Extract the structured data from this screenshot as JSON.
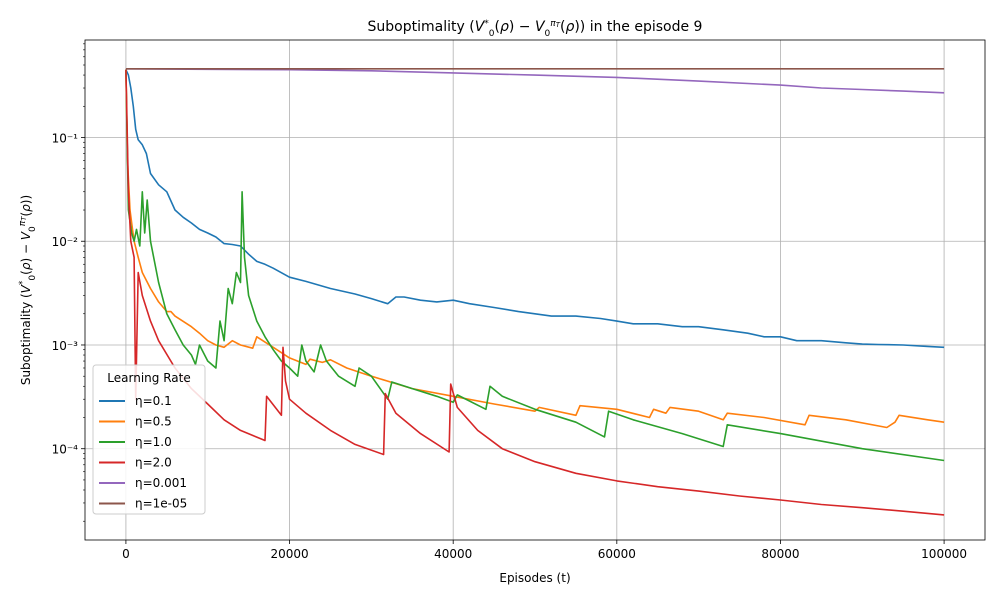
{
  "chart_data": {
    "type": "line",
    "title": "Suboptimality (V₀*(ρ) − V₀^πₜ(ρ)) in the episode 9",
    "xlabel": "Episodes (t)",
    "ylabel": "Suboptimality (V₀*(ρ) − V₀^πₜ(ρ))",
    "xlim": [
      -5000,
      105000
    ],
    "ylim_log10": [
      -4.88,
      -0.06
    ],
    "yscale": "log",
    "grid": true,
    "x_ticks": [
      0,
      20000,
      40000,
      60000,
      80000,
      100000
    ],
    "x_tick_labels": [
      "0",
      "20000",
      "40000",
      "60000",
      "80000",
      "100000"
    ],
    "y_ticks": [
      0.0001,
      0.001,
      0.01,
      0.1
    ],
    "y_tick_labels": [
      "10⁻⁴",
      "10⁻³",
      "10⁻²",
      "10⁻¹"
    ],
    "legend": {
      "title": "Learning Rate",
      "position": "lower-left"
    },
    "series": [
      {
        "name": "η=0.1",
        "color": "#1f77b4",
        "x": [
          0,
          300,
          600,
          900,
          1200,
          1500,
          2000,
          2500,
          3000,
          4000,
          5000,
          6000,
          7000,
          8000,
          9000,
          10000,
          11000,
          12000,
          13000,
          14000,
          15000,
          16000,
          17000,
          18000,
          20000,
          22000,
          25000,
          28000,
          30000,
          32000,
          33000,
          34000,
          36000,
          38000,
          40000,
          42000,
          45000,
          48000,
          50000,
          52000,
          55000,
          58000,
          60000,
          62000,
          65000,
          68000,
          70000,
          73000,
          76000,
          78000,
          80000,
          82000,
          85000,
          88000,
          90000,
          92000,
          95000,
          98000,
          100000
        ],
        "y": [
          0.45,
          0.4,
          0.3,
          0.2,
          0.12,
          0.095,
          0.085,
          0.07,
          0.045,
          0.035,
          0.03,
          0.02,
          0.017,
          0.015,
          0.013,
          0.012,
          0.011,
          0.0095,
          0.0093,
          0.009,
          0.0075,
          0.0064,
          0.006,
          0.0055,
          0.0045,
          0.0041,
          0.0035,
          0.0031,
          0.0028,
          0.0025,
          0.0029,
          0.0029,
          0.0027,
          0.0026,
          0.0027,
          0.0025,
          0.0023,
          0.0021,
          0.002,
          0.0019,
          0.0019,
          0.0018,
          0.0017,
          0.0016,
          0.0016,
          0.0015,
          0.0015,
          0.0014,
          0.0013,
          0.0012,
          0.0012,
          0.0011,
          0.0011,
          0.00105,
          0.00102,
          0.00101,
          0.001,
          0.00097,
          0.00095
        ]
      },
      {
        "name": "η=0.5",
        "color": "#ff7f0e",
        "x": [
          0,
          200,
          500,
          800,
          1000,
          1500,
          2000,
          3000,
          4000,
          5000,
          5500,
          6000,
          8000,
          9000,
          10000,
          11000,
          12000,
          13000,
          14000,
          15500,
          16000,
          18000,
          20000,
          22000,
          22500,
          24000,
          25000,
          27000,
          30000,
          35000,
          40000,
          45000,
          50000,
          50500,
          55000,
          55500,
          60000,
          64000,
          64500,
          66000,
          66500,
          70000,
          73000,
          73500,
          78000,
          83000,
          83500,
          88000,
          93000,
          94000,
          94500,
          98000,
          100000
        ],
        "y": [
          0.45,
          0.06,
          0.02,
          0.013,
          0.01,
          0.007,
          0.005,
          0.0035,
          0.0026,
          0.0021,
          0.0021,
          0.0019,
          0.0015,
          0.0013,
          0.0011,
          0.001,
          0.00095,
          0.0011,
          0.001,
          0.00093,
          0.0012,
          0.00095,
          0.00075,
          0.00065,
          0.00073,
          0.00068,
          0.00072,
          0.0006,
          0.0005,
          0.00038,
          0.00032,
          0.00027,
          0.00023,
          0.00025,
          0.00021,
          0.00026,
          0.00024,
          0.0002,
          0.00024,
          0.00022,
          0.00025,
          0.00023,
          0.00019,
          0.00022,
          0.0002,
          0.00017,
          0.00021,
          0.00019,
          0.00016,
          0.00018,
          0.00021,
          0.00019,
          0.00018
        ]
      },
      {
        "name": "η=1.0",
        "color": "#2ca02c",
        "x": [
          0,
          300,
          700,
          1000,
          1300,
          1700,
          2000,
          2300,
          2600,
          3000,
          4000,
          5000,
          6000,
          7000,
          8000,
          8500,
          9000,
          10000,
          11000,
          11500,
          12000,
          12500,
          13000,
          13500,
          14000,
          14200,
          14500,
          15000,
          16000,
          17000,
          18000,
          19000,
          20000,
          21000,
          21500,
          22000,
          23000,
          23800,
          24500,
          26000,
          28000,
          28500,
          30000,
          32000,
          32500,
          35000,
          38000,
          40000,
          40500,
          44000,
          44500,
          46000,
          50000,
          55000,
          58500,
          59000,
          62000,
          68000,
          73000,
          73500,
          80000,
          90000,
          100000
        ],
        "y": [
          0.45,
          0.02,
          0.012,
          0.01,
          0.013,
          0.009,
          0.03,
          0.012,
          0.025,
          0.01,
          0.004,
          0.002,
          0.0014,
          0.001,
          0.0008,
          0.00065,
          0.001,
          0.0007,
          0.0006,
          0.0017,
          0.0011,
          0.0035,
          0.0025,
          0.005,
          0.004,
          0.03,
          0.007,
          0.003,
          0.0017,
          0.0012,
          0.0009,
          0.0007,
          0.0006,
          0.0005,
          0.001,
          0.0007,
          0.00055,
          0.001,
          0.0007,
          0.0005,
          0.0004,
          0.0006,
          0.0005,
          0.0003,
          0.00044,
          0.00038,
          0.00032,
          0.00028,
          0.00033,
          0.00024,
          0.0004,
          0.00032,
          0.00024,
          0.00018,
          0.00013,
          0.00023,
          0.00019,
          0.00014,
          0.000105,
          0.00017,
          0.00014,
          0.0001,
          7.7e-05
        ]
      },
      {
        "name": "η=2.0",
        "color": "#d62728",
        "x": [
          0,
          100,
          300,
          600,
          1000,
          1200,
          1500,
          2000,
          3000,
          4000,
          6000,
          8000,
          10000,
          12000,
          14000,
          17000,
          17200,
          19000,
          19200,
          19500,
          20000,
          22000,
          25000,
          28000,
          31500,
          31700,
          33000,
          36000,
          39500,
          39700,
          40500,
          43000,
          46000,
          50000,
          55000,
          60000,
          65000,
          70000,
          75000,
          80000,
          85000,
          90000,
          95000,
          100000
        ],
        "y": [
          0.45,
          0.2,
          0.03,
          0.01,
          0.007,
          0.0003,
          0.005,
          0.003,
          0.0017,
          0.0011,
          0.0006,
          0.00038,
          0.00027,
          0.00019,
          0.00015,
          0.00012,
          0.00032,
          0.00021,
          0.00095,
          0.00045,
          0.0003,
          0.00022,
          0.00015,
          0.00011,
          8.8e-05,
          0.00034,
          0.00022,
          0.00014,
          9.3e-05,
          0.00042,
          0.00025,
          0.00015,
          0.0001,
          7.5e-05,
          5.8e-05,
          4.9e-05,
          4.3e-05,
          3.9e-05,
          3.5e-05,
          3.2e-05,
          2.9e-05,
          2.7e-05,
          2.5e-05,
          2.3e-05
        ]
      },
      {
        "name": "η=0.001",
        "color": "#9467bd",
        "x": [
          0,
          10000,
          20000,
          30000,
          40000,
          50000,
          60000,
          70000,
          80000,
          85000,
          90000,
          95000,
          100000
        ],
        "y": [
          0.46,
          0.455,
          0.45,
          0.44,
          0.42,
          0.4,
          0.38,
          0.35,
          0.32,
          0.3,
          0.29,
          0.28,
          0.27
        ]
      },
      {
        "name": "η=1e-05",
        "color": "#8c564b",
        "x": [
          0,
          100000
        ],
        "y": [
          0.46,
          0.46
        ]
      }
    ]
  }
}
